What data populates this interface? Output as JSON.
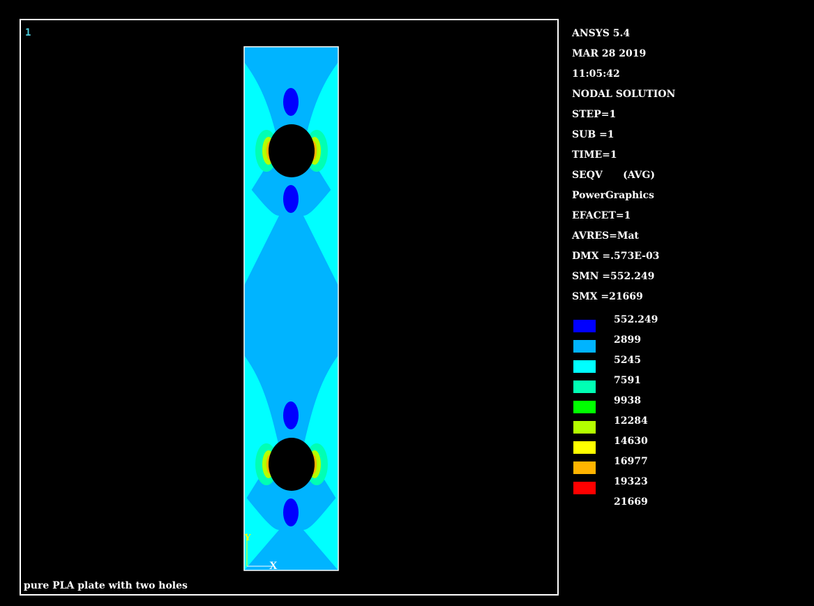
{
  "viewport": {
    "window_number": "1",
    "caption": "pure PLA plate with two holes",
    "triad": {
      "x_label": "X",
      "y_label": "Y"
    }
  },
  "info": [
    "ANSYS 5.4",
    "MAR 28 2019",
    "11:05:42",
    "NODAL SOLUTION",
    "STEP=1",
    "SUB =1",
    "TIME=1",
    "SEQV      (AVG)",
    "PowerGraphics",
    "EFACET=1",
    "AVRES=Mat",
    "DMX =.573E-03",
    "SMN =552.249",
    "SMX =21669"
  ],
  "legend": [
    {
      "label": "552.249",
      "color": "#0000ff"
    },
    {
      "label": "2899",
      "color": "#00b4ff"
    },
    {
      "label": "5245",
      "color": "#00ffff"
    },
    {
      "label": "7591",
      "color": "#00ffb4"
    },
    {
      "label": "9938",
      "color": "#00ff00"
    },
    {
      "label": "12284",
      "color": "#b4ff00"
    },
    {
      "label": "14630",
      "color": "#ffff00"
    },
    {
      "label": "16977",
      "color": "#ffb400"
    },
    {
      "label": "19323",
      "color": "#ff0000"
    },
    {
      "label": "21669",
      "color": ""
    }
  ]
}
